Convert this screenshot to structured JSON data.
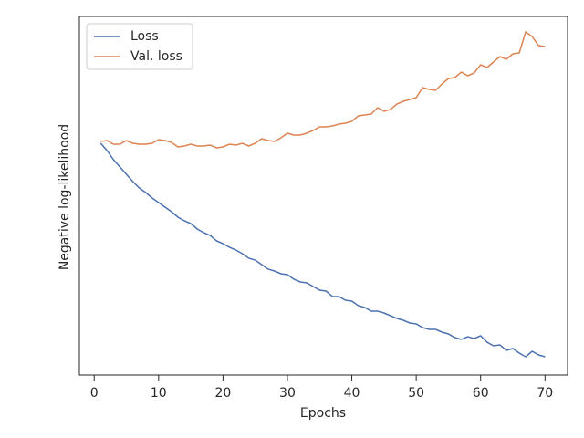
{
  "chart_data": {
    "type": "line",
    "xlabel": "Epochs",
    "ylabel": "Negative log-likelihood",
    "x": [
      1,
      2,
      3,
      4,
      5,
      6,
      7,
      8,
      9,
      10,
      11,
      12,
      13,
      14,
      15,
      16,
      17,
      18,
      19,
      20,
      21,
      22,
      23,
      24,
      25,
      26,
      27,
      28,
      29,
      30,
      31,
      32,
      33,
      34,
      35,
      36,
      37,
      38,
      39,
      40,
      41,
      42,
      43,
      44,
      45,
      46,
      47,
      48,
      49,
      50,
      51,
      52,
      53,
      54,
      55,
      56,
      57,
      58,
      59,
      60,
      61,
      62,
      63,
      64,
      65,
      66,
      67,
      68,
      69,
      70
    ],
    "series": [
      {
        "name": "Loss",
        "color": "#4c72b0",
        "values": [
          254,
          246,
          236,
          228,
          220,
          212,
          205,
          200,
          194,
          189,
          184,
          179,
          173,
          169,
          166,
          160,
          156,
          153,
          147,
          144,
          140,
          137,
          133,
          128,
          126,
          121,
          116,
          114,
          111,
          110,
          105,
          102,
          101,
          97,
          93,
          92,
          86,
          86,
          82,
          81,
          76,
          74,
          70,
          70,
          68,
          65,
          62,
          60,
          57,
          56,
          52,
          50,
          50,
          47,
          45,
          41,
          39,
          42,
          40,
          43,
          36,
          32,
          33,
          27,
          29,
          24,
          20,
          26,
          22,
          20
        ]
      },
      {
        "name": "Val. loss",
        "color": "#dd8452",
        "values": [
          256,
          257,
          253,
          253,
          257,
          254,
          253,
          253,
          254,
          258,
          257,
          255,
          250,
          251,
          253,
          251,
          251,
          252,
          249,
          250,
          253,
          252,
          254,
          251,
          254,
          259,
          257,
          256,
          260,
          265,
          263,
          263,
          265,
          268,
          272,
          272,
          273,
          275,
          276,
          278,
          284,
          285,
          286,
          293,
          289,
          291,
          297,
          300,
          302,
          304,
          315,
          313,
          312,
          319,
          325,
          326,
          332,
          328,
          331,
          340,
          337,
          343,
          349,
          346,
          352,
          353,
          376,
          371,
          361,
          360
        ]
      }
    ],
    "xlim": [
      -2.3,
      73.5
    ],
    "xticks": [
      0,
      10,
      20,
      30,
      40,
      50,
      60,
      70
    ],
    "ylim": [
      0,
      393
    ],
    "legend": "upper left"
  }
}
